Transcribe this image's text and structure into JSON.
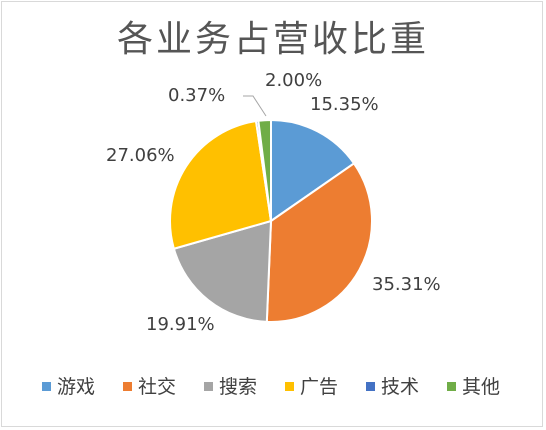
{
  "chart_data": {
    "type": "pie",
    "title": "各业务占营收比重",
    "categories": [
      "游戏",
      "社交",
      "搜索",
      "广告",
      "技术",
      "其他"
    ],
    "values": [
      15.35,
      35.31,
      19.91,
      27.06,
      0.37,
      2.0
    ],
    "data_labels": [
      "15.35%",
      "35.31%",
      "19.91%",
      "27.06%",
      "0.37%",
      "2.00%"
    ],
    "colors": [
      "#5b9bd5",
      "#ed7d31",
      "#a5a5a5",
      "#ffc000",
      "#4472c4",
      "#70ad47"
    ],
    "start_angle": "12 o'clock",
    "direction": "clockwise",
    "legend_position": "bottom"
  }
}
